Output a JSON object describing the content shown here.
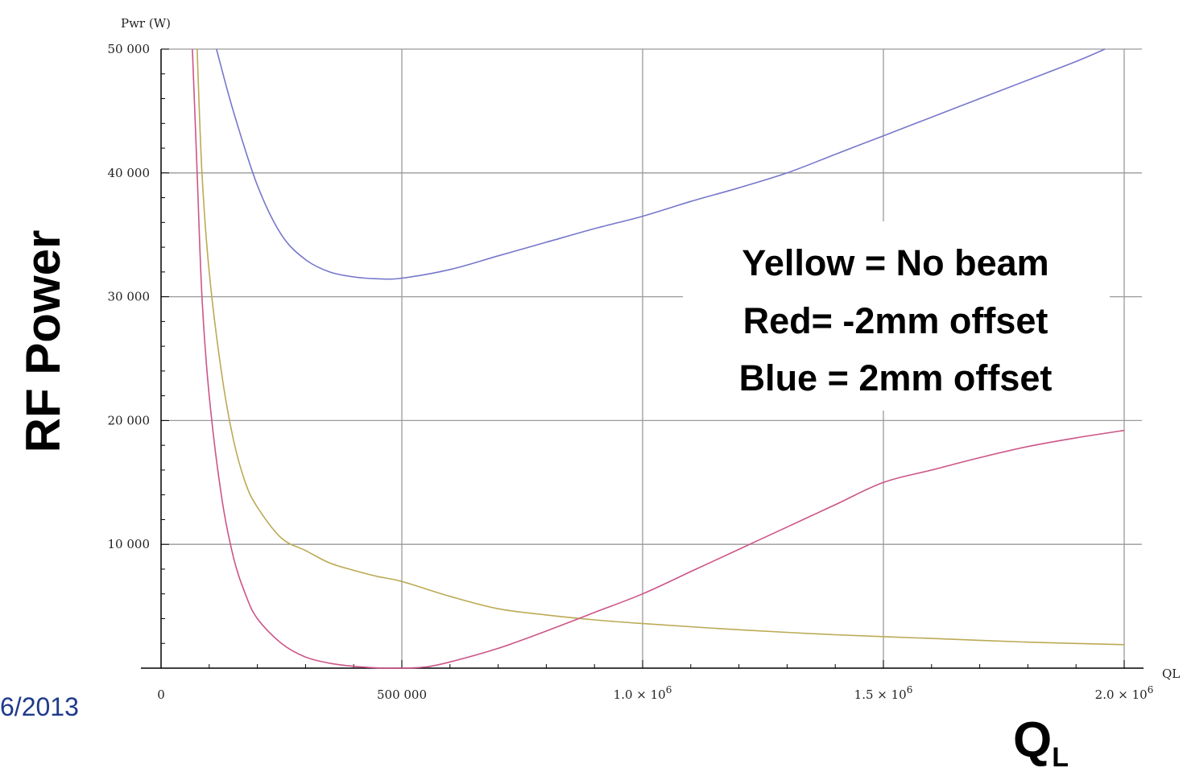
{
  "chart_data": {
    "type": "line",
    "ylabel_small": "Pwr (W)",
    "xlabel_small": "QL",
    "ylabel": "RF Power",
    "xlabel_main": "Q",
    "xlabel_sub": "L",
    "xlim": [
      0,
      2000000
    ],
    "ylim": [
      0,
      50000
    ],
    "grid": true,
    "xticks": [
      {
        "value": 0,
        "mant": "0",
        "exp": ""
      },
      {
        "value": 500000,
        "mant": "500 000",
        "exp": ""
      },
      {
        "value": 1000000,
        "mant": "1.0 × 10",
        "exp": "6"
      },
      {
        "value": 1500000,
        "mant": "1.5 × 10",
        "exp": "6"
      },
      {
        "value": 2000000,
        "mant": "2.0 × 10",
        "exp": "6"
      }
    ],
    "yticks": [
      {
        "value": 10000,
        "label": "10 000"
      },
      {
        "value": 20000,
        "label": "20 000"
      },
      {
        "value": 30000,
        "label": "30 000"
      },
      {
        "value": 40000,
        "label": "40 000"
      },
      {
        "value": 50000,
        "label": "50 000"
      }
    ],
    "legend_lines": [
      "Yellow = No beam",
      "Red= -2mm offset",
      "Blue = 2mm offset"
    ],
    "series": [
      {
        "color": "#7777cc",
        "points": [
          [
            115000,
            50000
          ],
          [
            150000,
            45000
          ],
          [
            200000,
            39000
          ],
          [
            250000,
            35000
          ],
          [
            300000,
            33000
          ],
          [
            350000,
            32000
          ],
          [
            400000,
            31600
          ],
          [
            450000,
            31450
          ],
          [
            500000,
            31500
          ],
          [
            600000,
            32200
          ],
          [
            700000,
            33300
          ],
          [
            800000,
            34400
          ],
          [
            900000,
            35500
          ],
          [
            1000000,
            36500
          ],
          [
            1100000,
            37700
          ],
          [
            1200000,
            38800
          ],
          [
            1300000,
            40000
          ],
          [
            1400000,
            41500
          ],
          [
            1500000,
            43000
          ],
          [
            1600000,
            44500
          ],
          [
            1700000,
            46000
          ],
          [
            1800000,
            47500
          ],
          [
            1900000,
            49000
          ],
          [
            1960000,
            50000
          ]
        ]
      },
      {
        "color": "#bbaa55",
        "points": [
          [
            75000,
            50000
          ],
          [
            85000,
            40000
          ],
          [
            100000,
            32000
          ],
          [
            125000,
            24000
          ],
          [
            150000,
            18500
          ],
          [
            175000,
            15000
          ],
          [
            200000,
            13000
          ],
          [
            250000,
            10500
          ],
          [
            300000,
            9500
          ],
          [
            350000,
            8500
          ],
          [
            400000,
            7900
          ],
          [
            450000,
            7400
          ],
          [
            500000,
            7000
          ],
          [
            600000,
            5800
          ],
          [
            700000,
            4800
          ],
          [
            800000,
            4300
          ],
          [
            900000,
            3900
          ],
          [
            1000000,
            3600
          ],
          [
            1200000,
            3100
          ],
          [
            1400000,
            2700
          ],
          [
            1600000,
            2400
          ],
          [
            1800000,
            2100
          ],
          [
            2000000,
            1900
          ]
        ]
      },
      {
        "color": "#cc5588",
        "points": [
          [
            65000,
            50000
          ],
          [
            75000,
            40000
          ],
          [
            85000,
            30000
          ],
          [
            100000,
            22000
          ],
          [
            125000,
            14000
          ],
          [
            150000,
            9000
          ],
          [
            175000,
            6000
          ],
          [
            200000,
            4000
          ],
          [
            250000,
            2000
          ],
          [
            300000,
            900
          ],
          [
            350000,
            400
          ],
          [
            400000,
            150
          ],
          [
            450000,
            20
          ],
          [
            500000,
            0
          ],
          [
            550000,
            100
          ],
          [
            600000,
            500
          ],
          [
            700000,
            1600
          ],
          [
            800000,
            3000
          ],
          [
            900000,
            4500
          ],
          [
            1000000,
            6000
          ],
          [
            1100000,
            7800
          ],
          [
            1200000,
            9600
          ],
          [
            1300000,
            11400
          ],
          [
            1400000,
            13200
          ],
          [
            1500000,
            15000
          ],
          [
            1600000,
            16000
          ],
          [
            1700000,
            17000
          ],
          [
            1800000,
            17900
          ],
          [
            1900000,
            18600
          ],
          [
            2000000,
            19200
          ]
        ]
      }
    ]
  },
  "footer": {
    "date_fragment": "6/2013"
  }
}
